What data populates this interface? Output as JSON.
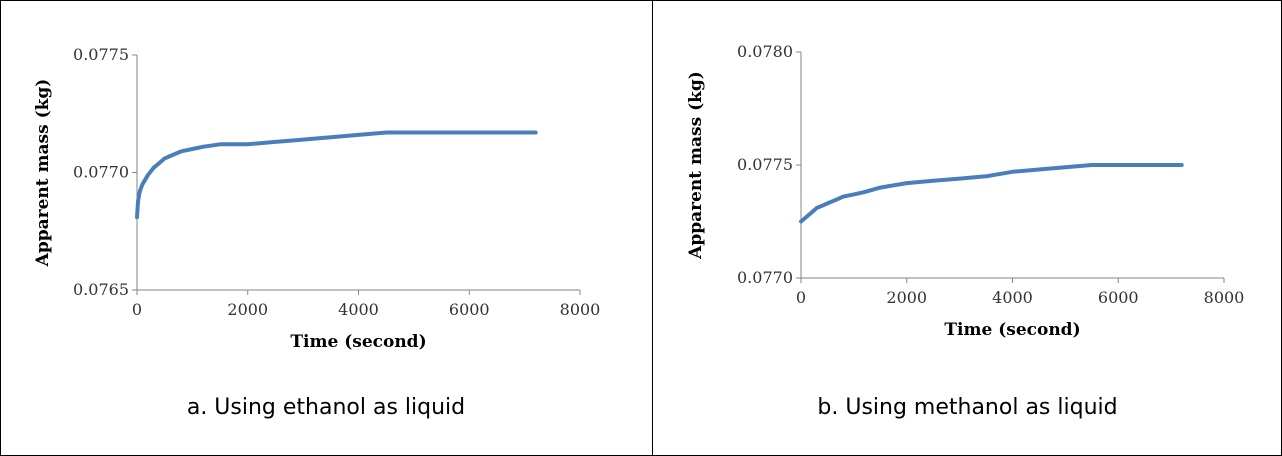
{
  "chart_data": [
    {
      "type": "line",
      "caption": "a.  Using ethanol as liquid",
      "xlabel": "Time (second)",
      "ylabel": "Apparent mass (kg)",
      "xlim": [
        0,
        8000
      ],
      "ylim": [
        0.0765,
        0.0775
      ],
      "x_ticks": [
        "0",
        "2000",
        "4000",
        "6000",
        "8000"
      ],
      "y_ticks": [
        "0.0765",
        "0.0770",
        "0.0775"
      ],
      "grid": false,
      "series": [
        {
          "color": "#4a7ebb",
          "x": [
            0,
            20,
            50,
            100,
            200,
            300,
            400,
            500,
            600,
            800,
            1000,
            1200,
            1500,
            2000,
            2500,
            3000,
            3500,
            4000,
            4500,
            5000,
            5500,
            6000,
            6500,
            7000,
            7200
          ],
          "y": [
            0.07681,
            0.07688,
            0.07692,
            0.07695,
            0.07699,
            0.07702,
            0.07704,
            0.07706,
            0.07707,
            0.07709,
            0.0771,
            0.07711,
            0.07712,
            0.07712,
            0.07713,
            0.07714,
            0.07715,
            0.07716,
            0.07717,
            0.07717,
            0.07717,
            0.07717,
            0.07717,
            0.07717,
            0.07717
          ]
        }
      ]
    },
    {
      "type": "line",
      "caption": "b.  Using methanol as liquid",
      "xlabel": "Time (second)",
      "ylabel": "Apparent mass (kg)",
      "xlim": [
        0,
        8000
      ],
      "ylim": [
        0.077,
        0.078
      ],
      "x_ticks": [
        "0",
        "2000",
        "4000",
        "6000",
        "8000"
      ],
      "y_ticks": [
        "0.0770",
        "0.0775",
        "0.0780"
      ],
      "grid": false,
      "series": [
        {
          "color": "#4a7ebb",
          "x": [
            0,
            100,
            200,
            300,
            400,
            500,
            600,
            700,
            800,
            1000,
            1200,
            1500,
            2000,
            2500,
            3000,
            3500,
            4000,
            4500,
            5000,
            5500,
            6000,
            6500,
            7000,
            7200
          ],
          "y": [
            0.07725,
            0.07727,
            0.07729,
            0.07731,
            0.07732,
            0.07733,
            0.07734,
            0.07735,
            0.07736,
            0.07737,
            0.07738,
            0.0774,
            0.07742,
            0.07743,
            0.07744,
            0.07745,
            0.07747,
            0.07748,
            0.07749,
            0.0775,
            0.0775,
            0.0775,
            0.0775,
            0.0775
          ]
        }
      ]
    }
  ]
}
